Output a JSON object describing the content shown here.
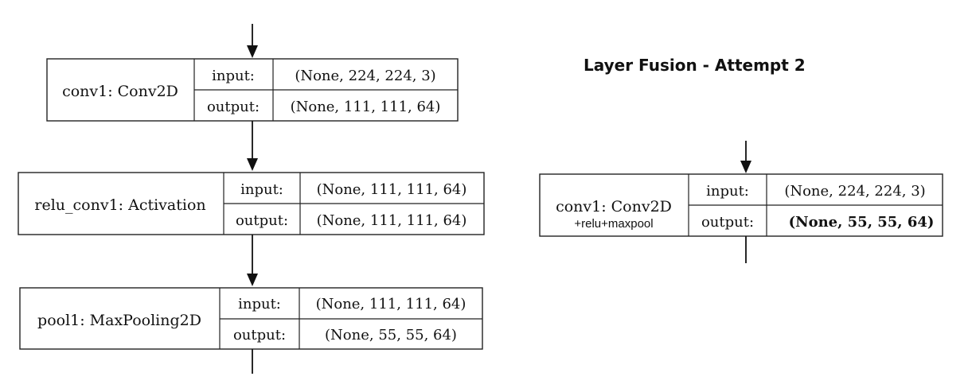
{
  "heading": "Layer Fusion - Attempt 2",
  "left_graph": {
    "nodes": [
      {
        "name": "conv1: Conv2D",
        "input_label": "input:",
        "input_value": "(None, 224, 224, 3)",
        "output_label": "output:",
        "output_value": "(None, 111, 111, 64)"
      },
      {
        "name": "relu_conv1: Activation",
        "input_label": "input:",
        "input_value": "(None, 111, 111, 64)",
        "output_label": "output:",
        "output_value": "(None, 111, 111, 64)"
      },
      {
        "name": "pool1: MaxPooling2D",
        "input_label": "input:",
        "input_value": "(None, 111, 111, 64)",
        "output_label": "output:",
        "output_value": "(None, 55, 55, 64)"
      }
    ]
  },
  "right_graph": {
    "node": {
      "name": "conv1: Conv2D",
      "subtitle": "+relu+maxpool",
      "input_label": "input:",
      "input_value": "(None, 224, 224, 3)",
      "output_label": "output:",
      "output_value": "(None, 55, 55, 64)"
    }
  }
}
